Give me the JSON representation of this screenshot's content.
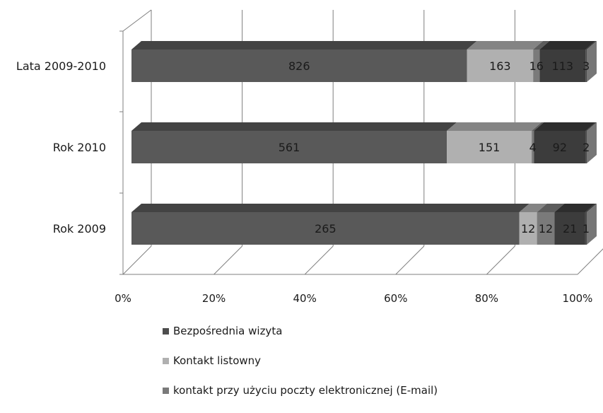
{
  "chart_data": {
    "type": "bar",
    "orientation": "horizontal",
    "stacked": "percent",
    "three_d": true,
    "categories": [
      "Lata 2009-2010",
      "Rok 2010",
      "Rok 2009"
    ],
    "series": [
      {
        "name": "Bezpośrednia wizyta",
        "values": [
          826,
          561,
          265
        ],
        "color": "#595959",
        "label_color": "#1a1a1a"
      },
      {
        "name": "Kontakt listowny",
        "values": [
          163,
          151,
          12
        ],
        "color": "#b0b0b0",
        "label_color": "#1a1a1a"
      },
      {
        "name": "kontakt przy użyciu poczty elektronicznej (E-mail)",
        "values": [
          16,
          4,
          12
        ],
        "color": "#7a7a7a",
        "label_color": "#1a1a1a"
      },
      {
        "values": [
          113,
          92,
          21
        ],
        "color": "#3c3c3c",
        "label_color": "#1a1a1a"
      },
      {
        "values": [
          3,
          2,
          1
        ],
        "color": "#4a4a4a",
        "label_color": "#1a1a1a"
      }
    ],
    "xlim": [
      0,
      100
    ],
    "x_ticks": [
      "0%",
      "20%",
      "40%",
      "60%",
      "80%",
      "100%"
    ],
    "grid": true,
    "legend_position": "bottom"
  },
  "legend": {
    "items": [
      {
        "label": "Bezpośrednia wizyta",
        "color": "#4d4d4d"
      },
      {
        "label": "Kontakt listowny",
        "color": "#b0b0b0"
      },
      {
        "label": "kontakt przy użyciu poczty elektronicznej (E-mail)",
        "color": "#7a7a7a"
      }
    ]
  }
}
